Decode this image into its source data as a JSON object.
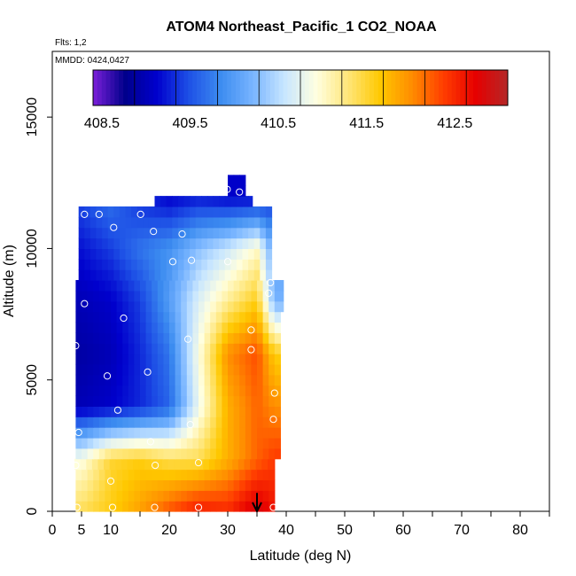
{
  "chart_data": {
    "type": "heatmap",
    "title": "ATOM4 Northeast_Pacific_1 CO2_NOAA",
    "annotations": [
      "Flts: 1,2",
      "MMDD: 0424,0427"
    ],
    "xlabel": "Latitude (deg N)",
    "ylabel": "Altitude (m)",
    "xlim": [
      0,
      85
    ],
    "ylim": [
      0,
      17500
    ],
    "xticks": [
      0,
      5,
      10,
      20,
      30,
      40,
      50,
      60,
      70,
      80
    ],
    "xticks_minor": [
      15,
      25,
      35,
      45,
      55,
      65,
      75,
      85
    ],
    "yticks": [
      0,
      5000,
      10000,
      15000
    ],
    "colorbar": {
      "min": 408.4,
      "max": 413.1,
      "tick_values": [
        408.5,
        409.5,
        410.5,
        411.5,
        412.5
      ],
      "tick_labels": [
        "408.5",
        "409.5",
        "410.5",
        "411.5",
        "412.5"
      ],
      "colors": [
        "#7b1fd9",
        "#00008b",
        "#0000cd",
        "#1e50e6",
        "#3c8cf0",
        "#78b4ff",
        "#c8e6ff",
        "#ffffe0",
        "#ffe678",
        "#ffc800",
        "#ff8c00",
        "#ff3c00",
        "#e60000",
        "#b42828"
      ]
    },
    "altitude_levels": [
      0,
      2000,
      4000,
      6000,
      8000,
      10000,
      12000
    ],
    "latitude_columns": [
      5,
      10,
      15,
      20,
      25,
      30,
      35,
      38
    ],
    "co2_ppm": [
      [
        411.4,
        411.6,
        411.9,
        412.3,
        412.6,
        412.5,
        412.9,
        412.6
      ],
      [
        410.9,
        411.5,
        411.6,
        411.4,
        411.4,
        411.8,
        412.2,
        412.4
      ],
      [
        409.0,
        409.1,
        409.3,
        409.6,
        410.8,
        411.8,
        412.2,
        412.0
      ],
      [
        408.9,
        409.0,
        409.3,
        409.7,
        410.9,
        412.0,
        412.3,
        411.6
      ],
      [
        409.0,
        409.1,
        409.4,
        410.0,
        410.7,
        411.2,
        411.6,
        410.2
      ],
      [
        409.2,
        409.4,
        409.7,
        409.9,
        410.3,
        410.6,
        411.0,
        410.0
      ],
      [
        409.5,
        409.7,
        409.3,
        409.1,
        409.2,
        409.1,
        409.1,
        409.3
      ]
    ],
    "flight_track": [
      {
        "lat": 4.2,
        "alt": 150
      },
      {
        "lat": 10.3,
        "alt": 150
      },
      {
        "lat": 17.5,
        "alt": 150
      },
      {
        "lat": 25.0,
        "alt": 150
      },
      {
        "lat": 37.8,
        "alt": 150
      },
      {
        "lat": 10.0,
        "alt": 1150
      },
      {
        "lat": 4.0,
        "alt": 1750
      },
      {
        "lat": 17.6,
        "alt": 1750
      },
      {
        "lat": 25.0,
        "alt": 1850
      },
      {
        "lat": 4.5,
        "alt": 3000
      },
      {
        "lat": 16.8,
        "alt": 2650
      },
      {
        "lat": 23.6,
        "alt": 3300
      },
      {
        "lat": 37.8,
        "alt": 3500
      },
      {
        "lat": 11.2,
        "alt": 3850
      },
      {
        "lat": 38.0,
        "alt": 4500
      },
      {
        "lat": 9.4,
        "alt": 5150
      },
      {
        "lat": 16.3,
        "alt": 5300
      },
      {
        "lat": 4.0,
        "alt": 6300
      },
      {
        "lat": 34.0,
        "alt": 6150
      },
      {
        "lat": 23.2,
        "alt": 6550
      },
      {
        "lat": 34.0,
        "alt": 6900
      },
      {
        "lat": 12.2,
        "alt": 7350
      },
      {
        "lat": 5.5,
        "alt": 7900
      },
      {
        "lat": 37.0,
        "alt": 8300
      },
      {
        "lat": 37.3,
        "alt": 8700
      },
      {
        "lat": 20.6,
        "alt": 9500
      },
      {
        "lat": 23.8,
        "alt": 9550
      },
      {
        "lat": 30.0,
        "alt": 9500
      },
      {
        "lat": 17.3,
        "alt": 10650
      },
      {
        "lat": 22.2,
        "alt": 10550
      },
      {
        "lat": 10.5,
        "alt": 10800
      },
      {
        "lat": 5.5,
        "alt": 11300
      },
      {
        "lat": 8.0,
        "alt": 11300
      },
      {
        "lat": 15.1,
        "alt": 11300
      },
      {
        "lat": 29.9,
        "alt": 12250
      },
      {
        "lat": 32.0,
        "alt": 12150
      }
    ],
    "arrow": {
      "lat": 35,
      "alt_from": 700,
      "alt_to": 0
    },
    "grid": false,
    "legend": "none"
  }
}
